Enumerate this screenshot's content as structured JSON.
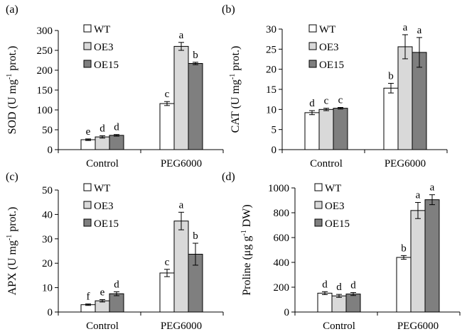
{
  "chart_data": [
    {
      "panel": "(a)",
      "type": "bar",
      "ylabel_main": "SOD (U mg",
      "ylabel_sup": "-1",
      "ylabel_end": " prot.)",
      "ylim": [
        0,
        300
      ],
      "yticks": [
        "0",
        "50",
        "100",
        "150",
        "200",
        "250",
        "300"
      ],
      "categories": [
        "Control",
        "PEG6000"
      ],
      "series": [
        {
          "name": "WT",
          "values": [
            25,
            116
          ],
          "errors": [
            2,
            5
          ],
          "letters": [
            "e",
            "c"
          ]
        },
        {
          "name": "OE3",
          "values": [
            32,
            260
          ],
          "errors": [
            3,
            10
          ],
          "letters": [
            "d",
            "a"
          ]
        },
        {
          "name": "OE15",
          "values": [
            36,
            217
          ],
          "errors": [
            2,
            3
          ],
          "letters": [
            "d",
            "b"
          ]
        }
      ],
      "legend": [
        "WT",
        "OE3",
        "OE15"
      ]
    },
    {
      "panel": "(b)",
      "type": "bar",
      "ylabel_main": "CAT (U mg",
      "ylabel_sup": "-1",
      "ylabel_end": " prot.)",
      "ylim": [
        0,
        30
      ],
      "yticks": [
        "0",
        "5",
        "10",
        "15",
        "20",
        "25",
        "30"
      ],
      "categories": [
        "Control",
        "PEG6000"
      ],
      "series": [
        {
          "name": "WT",
          "values": [
            9.2,
            15.3
          ],
          "errors": [
            0.5,
            1.2
          ],
          "letters": [
            "d",
            "b"
          ]
        },
        {
          "name": "OE3",
          "values": [
            10.0,
            25.6
          ],
          "errors": [
            0.3,
            3.0
          ],
          "letters": [
            "c",
            "a"
          ]
        },
        {
          "name": "OE15",
          "values": [
            10.3,
            24.2
          ],
          "errors": [
            0.2,
            3.7
          ],
          "letters": [
            "c",
            "a"
          ]
        }
      ],
      "legend": [
        "WT",
        "OE3",
        "OE15"
      ]
    },
    {
      "panel": "(c)",
      "type": "bar",
      "ylabel_main": "APX (U mg",
      "ylabel_sup": "-1",
      "ylabel_end": " prot.)",
      "ylim": [
        0,
        50
      ],
      "yticks": [
        "0",
        "10",
        "20",
        "30",
        "40",
        "50"
      ],
      "categories": [
        "Control",
        "PEG6000"
      ],
      "series": [
        {
          "name": "WT",
          "values": [
            3.0,
            16.0
          ],
          "errors": [
            0.3,
            1.5
          ],
          "letters": [
            "f",
            "c"
          ]
        },
        {
          "name": "OE3",
          "values": [
            4.6,
            37.3
          ],
          "errors": [
            0.5,
            3.6
          ],
          "letters": [
            "e",
            "a"
          ]
        },
        {
          "name": "OE15",
          "values": [
            7.5,
            23.7
          ],
          "errors": [
            0.8,
            4.5
          ],
          "letters": [
            "d",
            "b"
          ]
        }
      ],
      "legend": [
        "WT",
        "OE3",
        "OE15"
      ]
    },
    {
      "panel": "(d)",
      "type": "bar",
      "ylabel_main": "Proline (μg g",
      "ylabel_sup": "-1",
      "ylabel_end": " DW)",
      "ylim": [
        0,
        1000
      ],
      "yticks": [
        "0",
        "200",
        "400",
        "600",
        "800",
        "1000"
      ],
      "categories": [
        "Control",
        "PEG6000"
      ],
      "series": [
        {
          "name": "WT",
          "values": [
            152,
            440
          ],
          "errors": [
            12,
            15
          ],
          "letters": [
            "d",
            "b"
          ]
        },
        {
          "name": "OE3",
          "values": [
            130,
            818
          ],
          "errors": [
            12,
            65
          ],
          "letters": [
            "d",
            "a"
          ]
        },
        {
          "name": "OE15",
          "values": [
            145,
            905
          ],
          "errors": [
            12,
            40
          ],
          "letters": [
            "d",
            "a"
          ]
        }
      ],
      "legend": [
        "WT",
        "OE3",
        "OE15"
      ]
    }
  ],
  "colors": {
    "WT": "#ffffff",
    "OE3": "#d9d9d9",
    "OE15": "#7f7f7f",
    "stroke": "#000000"
  }
}
